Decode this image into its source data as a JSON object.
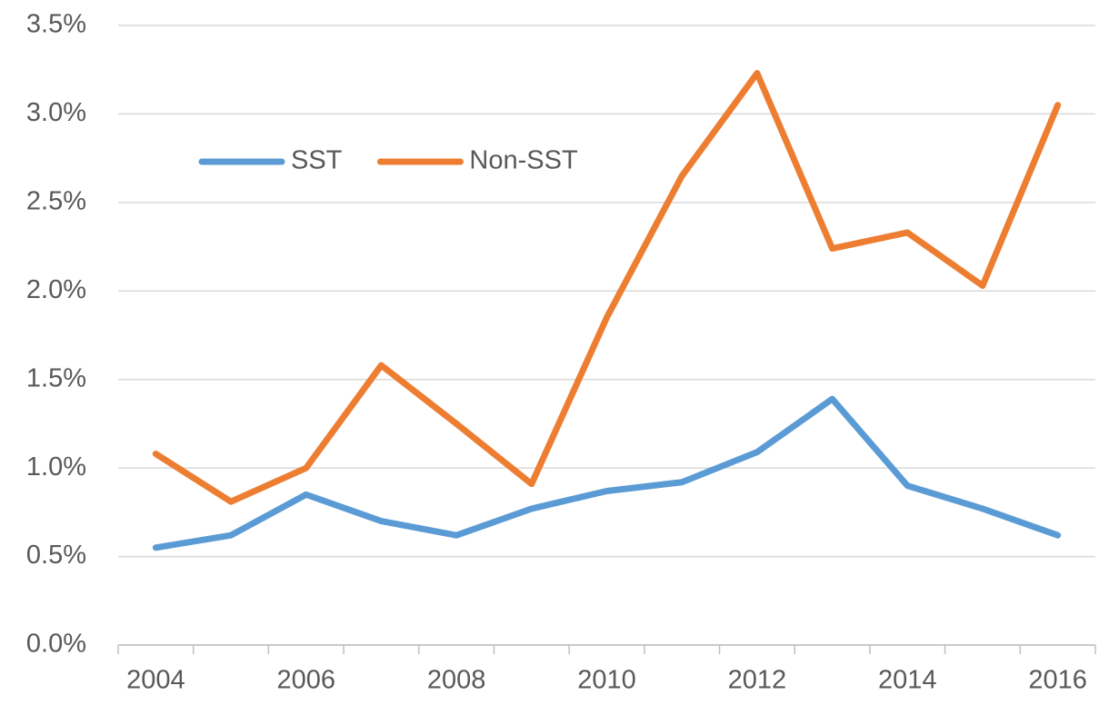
{
  "chart_data": {
    "type": "line",
    "categories": [
      "2004",
      null,
      "2006",
      null,
      "2008",
      null,
      "2010",
      null,
      "2012",
      null,
      "2014",
      null,
      "2016"
    ],
    "series": [
      {
        "name": "SST",
        "color": "#5b9bd5",
        "values": [
          0.55,
          0.62,
          0.85,
          0.7,
          0.62,
          0.77,
          0.87,
          0.92,
          1.09,
          1.39,
          0.9,
          0.77,
          0.62
        ]
      },
      {
        "name": "Non-SST",
        "color": "#ed7d31",
        "values": [
          1.08,
          0.81,
          1.0,
          1.58,
          1.25,
          0.91,
          1.85,
          2.65,
          3.23,
          2.24,
          2.33,
          2.03,
          3.05
        ]
      }
    ],
    "ylim": [
      0,
      3.5
    ],
    "yticks": [
      {
        "value": 0,
        "label": "0.0%"
      },
      {
        "value": 0.5,
        "label": "0.5%"
      },
      {
        "value": 1,
        "label": "1.0%"
      },
      {
        "value": 1.5,
        "label": "1.5%"
      },
      {
        "value": 2,
        "label": "2.0%"
      },
      {
        "value": 2.5,
        "label": "2.5%"
      },
      {
        "value": 3,
        "label": "3.0%"
      },
      {
        "value": 3.5,
        "label": "3.5%"
      }
    ],
    "grid": true,
    "legend": "top-left"
  }
}
